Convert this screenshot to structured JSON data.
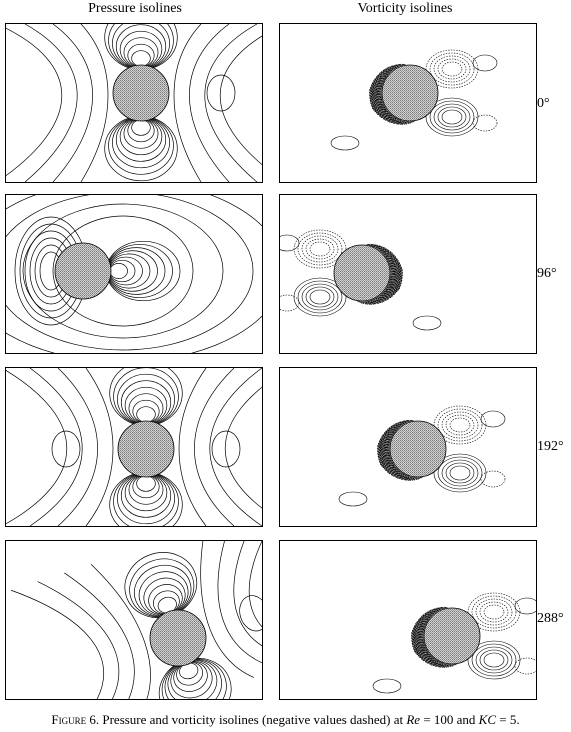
{
  "headers": {
    "pressure": "Pressure isolines",
    "vorticity": "Vorticity isolines"
  },
  "rows": [
    {
      "angle": "0°",
      "angle_deg": 0
    },
    {
      "angle": "96°",
      "angle_deg": 96
    },
    {
      "angle": "192°",
      "angle_deg": 192
    },
    {
      "angle": "288°",
      "angle_deg": 288
    }
  ],
  "caption": {
    "label": "Figure 6.",
    "text": " Pressure and vorticity isolines (negative values dashed) at ",
    "re_symbol": "Re",
    "re_eq": " = 100 and ",
    "kc_symbol": "KC",
    "kc_eq": " = 5."
  }
}
